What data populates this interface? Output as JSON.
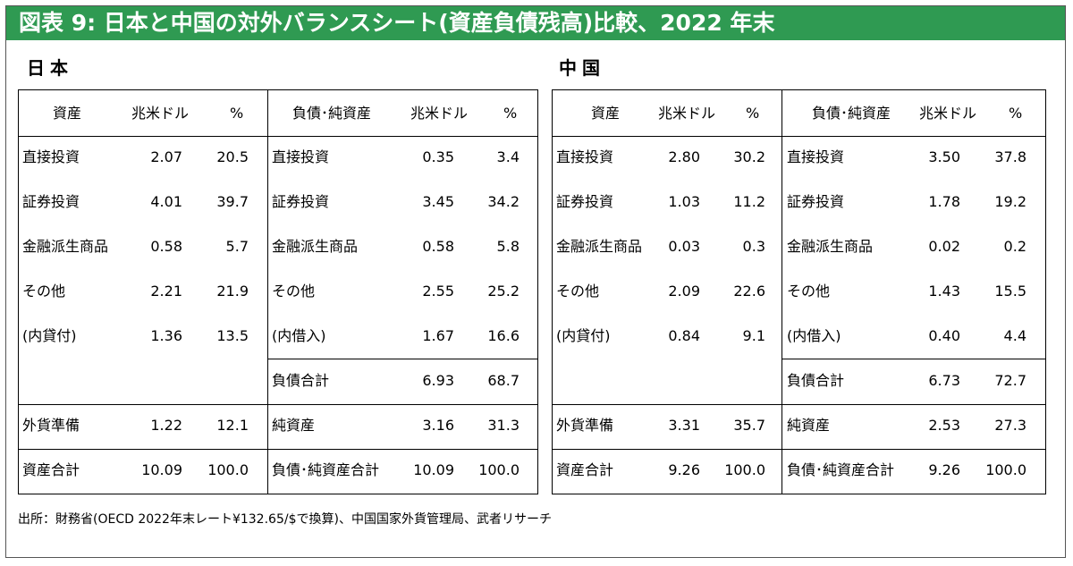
{
  "title": "図表 9: 日本と中国の対外バランスシート(資産負債残高)比較、2022 年末",
  "footer": "出所：財務省(OECD 2022年末レート¥132.65/$で換算)、中国国家外貨管理局、武者リサーチ",
  "headers": {
    "assets": "資産",
    "liabilities": "負債･純資産",
    "unit": "兆米ドル",
    "pct": "%"
  },
  "japan": {
    "label": "日本",
    "assets": [
      {
        "label": "直接投資",
        "value": "2.07",
        "pct": "20.5"
      },
      {
        "label": "証券投資",
        "value": "4.01",
        "pct": "39.7"
      },
      {
        "label": "金融派生商品",
        "value": "0.58",
        "pct": "5.7"
      },
      {
        "label": "その他",
        "value": "2.21",
        "pct": "21.9"
      },
      {
        "label": "(内貸付)",
        "value": "1.36",
        "pct": "13.5"
      }
    ],
    "reserves": {
      "label": "外貨準備",
      "value": "1.22",
      "pct": "12.1"
    },
    "total_assets": {
      "label": "資産合計",
      "value": "10.09",
      "pct": "100.0"
    },
    "liabilities": [
      {
        "label": "直接投資",
        "value": "0.35",
        "pct": "3.4"
      },
      {
        "label": "証券投資",
        "value": "3.45",
        "pct": "34.2"
      },
      {
        "label": "金融派生商品",
        "value": "0.58",
        "pct": "5.8"
      },
      {
        "label": "その他",
        "value": "2.55",
        "pct": "25.2"
      },
      {
        "label": "(内借入)",
        "value": "1.67",
        "pct": "16.6"
      }
    ],
    "total_liabilities": {
      "label": "負債合計",
      "value": "6.93",
      "pct": "68.7"
    },
    "net_assets": {
      "label": "純資産",
      "value": "3.16",
      "pct": "31.3"
    },
    "total_liab_net": {
      "label": "負債･純資産合計",
      "value": "10.09",
      "pct": "100.0"
    }
  },
  "china": {
    "label": "中国",
    "assets": [
      {
        "label": "直接投資",
        "value": "2.80",
        "pct": "30.2"
      },
      {
        "label": "証券投資",
        "value": "1.03",
        "pct": "11.2"
      },
      {
        "label": "金融派生商品",
        "value": "0.03",
        "pct": "0.3"
      },
      {
        "label": "その他",
        "value": "2.09",
        "pct": "22.6"
      },
      {
        "label": "(内貸付)",
        "value": "0.84",
        "pct": "9.1"
      }
    ],
    "reserves": {
      "label": "外貨準備",
      "value": "3.31",
      "pct": "35.7"
    },
    "total_assets": {
      "label": "資産合計",
      "value": "9.26",
      "pct": "100.0"
    },
    "liabilities": [
      {
        "label": "直接投資",
        "value": "3.50",
        "pct": "37.8"
      },
      {
        "label": "証券投資",
        "value": "1.78",
        "pct": "19.2"
      },
      {
        "label": "金融派生商品",
        "value": "0.02",
        "pct": "0.2"
      },
      {
        "label": "その他",
        "value": "1.43",
        "pct": "15.5"
      },
      {
        "label": "(内借入)",
        "value": "0.40",
        "pct": "4.4"
      }
    ],
    "total_liabilities": {
      "label": "負債合計",
      "value": "6.73",
      "pct": "72.7"
    },
    "net_assets": {
      "label": "純資産",
      "value": "2.53",
      "pct": "27.3"
    },
    "total_liab_net": {
      "label": "負債･純資産合計",
      "value": "9.26",
      "pct": "100.0"
    }
  }
}
